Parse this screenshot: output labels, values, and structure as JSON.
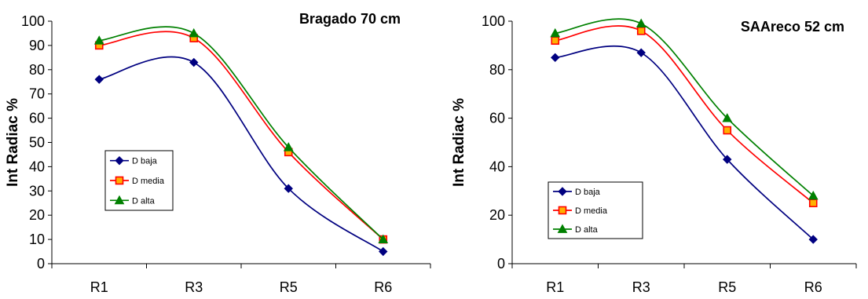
{
  "chart_data": [
    {
      "type": "line",
      "title": "Bragado 70 cm",
      "ylabel": "Int Radiac %",
      "xlabel": "",
      "categories": [
        "R1",
        "R3",
        "R5",
        "R6"
      ],
      "ylim": [
        0,
        100
      ],
      "yticks": [
        0,
        10,
        20,
        30,
        40,
        50,
        60,
        70,
        80,
        90,
        100
      ],
      "grid": false,
      "legend_position": "left-middle",
      "series": [
        {
          "name": "D baja",
          "values": [
            76,
            83,
            31,
            5
          ],
          "color": "#000080",
          "marker": "diamond"
        },
        {
          "name": "D media",
          "values": [
            90,
            93,
            46,
            10
          ],
          "color": "#ff0000",
          "marker": "square"
        },
        {
          "name": "D alta",
          "values": [
            92,
            95,
            48,
            10
          ],
          "color": "#008000",
          "marker": "triangle"
        }
      ]
    },
    {
      "type": "line",
      "title": "SAAreco 52 cm",
      "ylabel": "Int Radiac %",
      "xlabel": "",
      "categories": [
        "R1",
        "R3",
        "R5",
        "R6"
      ],
      "ylim": [
        0,
        100
      ],
      "yticks": [
        0,
        20,
        40,
        60,
        80,
        100
      ],
      "grid": false,
      "legend_position": "left-bottom",
      "series": [
        {
          "name": "D baja",
          "values": [
            85,
            87,
            43,
            10
          ],
          "color": "#000080",
          "marker": "diamond"
        },
        {
          "name": "D media",
          "values": [
            92,
            96,
            55,
            25
          ],
          "color": "#ff0000",
          "marker": "square"
        },
        {
          "name": "D alta",
          "values": [
            95,
            99,
            60,
            28
          ],
          "color": "#008000",
          "marker": "triangle"
        }
      ]
    }
  ]
}
